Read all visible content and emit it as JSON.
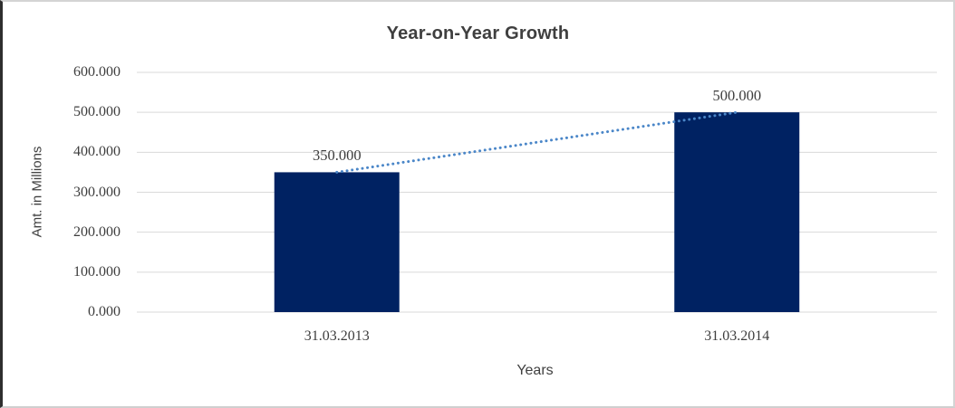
{
  "chart_data": {
    "type": "bar",
    "title": "Year-on-Year Growth",
    "xlabel": "Years",
    "ylabel": "Amt. in Millions",
    "categories": [
      "31.03.2013",
      "31.03.2014"
    ],
    "values": [
      350,
      500
    ],
    "value_labels": [
      "350.000",
      "500.000"
    ],
    "ylim": [
      0,
      600
    ],
    "ytick_step": 100,
    "ytick_labels": [
      "0.000",
      "100.000",
      "200.000",
      "300.000",
      "400.000",
      "500.000",
      "600.000"
    ],
    "grid": "horizontal",
    "legend": "none",
    "trendline": {
      "style": "dotted",
      "connects": "bar-tops",
      "from_value": 350,
      "to_value": 500
    },
    "colors": {
      "bar": "#002262",
      "trendline": "#4a86c8",
      "gridline": "#d9d9d9",
      "axis_line": "#d9d9d9",
      "tick_text": "#3d3d3d",
      "title_text": "#3f3f3f"
    }
  }
}
